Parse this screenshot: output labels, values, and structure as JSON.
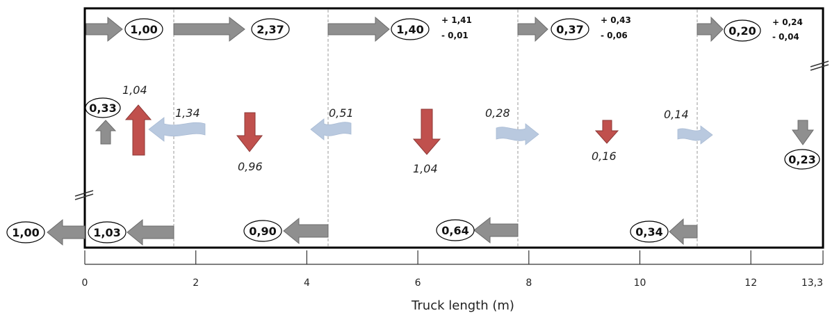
{
  "axis": {
    "title": "Truck length (m)",
    "ticks": [
      {
        "value": 0,
        "label": "0"
      },
      {
        "value": 2,
        "label": "2"
      },
      {
        "value": 4,
        "label": "4"
      },
      {
        "value": 6,
        "label": "6"
      },
      {
        "value": 8,
        "label": "8"
      },
      {
        "value": 10,
        "label": "10"
      },
      {
        "value": 12,
        "label": "12"
      },
      {
        "value": 13.3,
        "label": "13,3"
      }
    ]
  },
  "colors": {
    "flow_arrow": "#8f8f8f",
    "vertical_flux_arrow": "#c0504d",
    "lateral_flux_arrow": "#b9c9df",
    "frame": "#000000"
  },
  "top_flows": [
    {
      "label": "1,00"
    },
    {
      "label": "2,37"
    },
    {
      "label": "1,40",
      "plus": "+ 1,41",
      "minus": "-  0,01"
    },
    {
      "label": "0,37",
      "plus": "+ 0,43",
      "minus": "-  0,06"
    },
    {
      "label": "0,20",
      "plus": "+ 0,24",
      "minus": "-  0,04"
    }
  ],
  "bottom_flows": [
    {
      "label": "1,00"
    },
    {
      "label": "1,03"
    },
    {
      "label": "0,90"
    },
    {
      "label": "0,64"
    },
    {
      "label": "0,34"
    }
  ],
  "lateral_flows": [
    {
      "label": "1,34"
    },
    {
      "label": "0,51"
    },
    {
      "label": "0,28"
    },
    {
      "label": "0,14"
    }
  ],
  "vertical_flows": [
    {
      "label": "1,04",
      "direction": "up"
    },
    {
      "label": "0,96",
      "direction": "down"
    },
    {
      "label": "1,04",
      "direction": "down"
    },
    {
      "label": "0,16",
      "direction": "down"
    }
  ],
  "inlet_flow": {
    "label": "0,33",
    "direction": "up"
  },
  "outlet_flow": {
    "label": "0,23",
    "direction": "down"
  }
}
